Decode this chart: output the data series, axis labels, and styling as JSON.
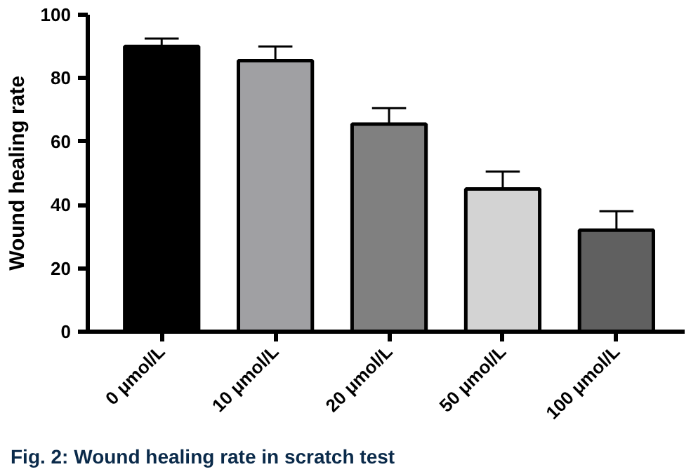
{
  "chart_data": {
    "type": "bar",
    "ylabel": "Wound healing rate",
    "categories": [
      "0 μmol/L",
      "10 μmol/L",
      "20 μmol/L",
      "50 μmol/L",
      "100 μmol/L"
    ],
    "values": [
      90,
      85.5,
      65.5,
      45,
      32
    ],
    "colors": [
      "#000000",
      "#a0a0a3",
      "#808080",
      "#d3d3d3",
      "#606060"
    ],
    "errors": [
      [
        90,
        92.5
      ],
      [
        85.5,
        90
      ],
      [
        65.5,
        70.5
      ],
      [
        45,
        50.5
      ],
      [
        32,
        38
      ]
    ],
    "ylim": [
      0,
      100
    ],
    "yticks": [
      0,
      20,
      40,
      60,
      80,
      100
    ],
    "grid": false,
    "annotations": [
      "Fig. 2: Wound healing rate in scratch test"
    ]
  }
}
